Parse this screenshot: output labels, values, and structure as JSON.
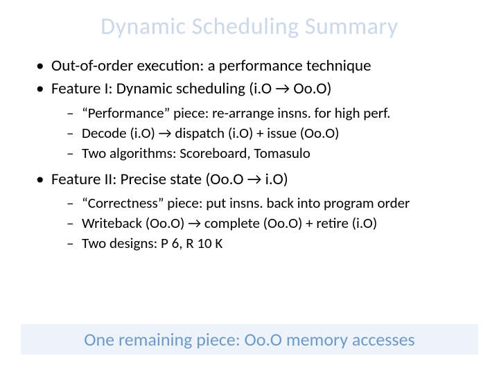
{
  "title": "Dynamic Scheduling Summary",
  "bullets": {
    "b1": "Out-of-order execution: a performance technique",
    "b2": "Feature I: Dynamic scheduling (i.O → Oo.O)",
    "b2_sub1": "“Performance” piece: re-arrange insns. for high perf.",
    "b2_sub2": "Decode (i.O) → dispatch (i.O) + issue (Oo.O)",
    "b2_sub3": "Two algorithms: Scoreboard, Tomasulo",
    "b3": "Feature II: Precise state (Oo.O → i.O)",
    "b3_sub1": "“Correctness” piece: put insns. back into program order",
    "b3_sub2": "Writeback (Oo.O) → complete (Oo.O) + retire (i.O)",
    "b3_sub3": "Two designs: P 6, R 10 K"
  },
  "footer": "One remaining piece: Oo.O memory accesses",
  "colors": {
    "title_color": "#c9d8ec",
    "body_text": "#000000",
    "footer_bg": "#eef3fa",
    "footer_text": "#6b9ad0",
    "background": "#ffffff"
  },
  "fonts": {
    "title_size_pt": 34,
    "bullet_size_pt": 23,
    "subbullet_size_pt": 21,
    "footer_size_pt": 26,
    "family": "Calibri"
  }
}
